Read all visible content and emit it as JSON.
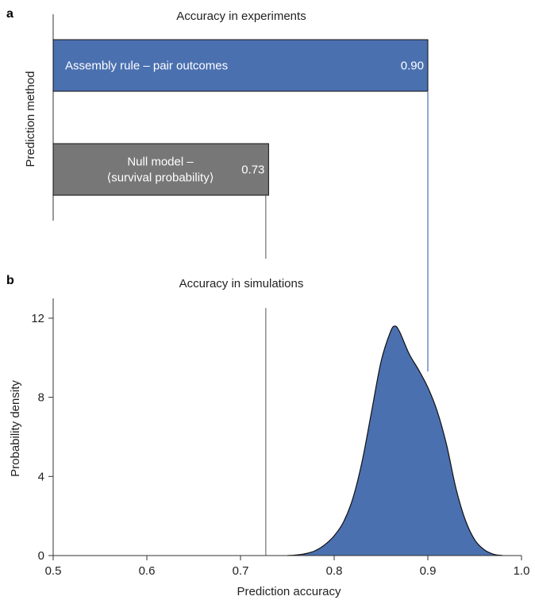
{
  "chart_data": [
    {
      "panel": "a",
      "type": "bar",
      "orientation": "horizontal",
      "title": "Accuracy in experiments",
      "ylabel": "Prediction method",
      "xlim": [
        0.5,
        1.0
      ],
      "categories": [
        {
          "lines": [
            "Assembly rule – pair outcomes"
          ]
        },
        {
          "lines": [
            "Null model –",
            "⟨survival probability⟩"
          ]
        }
      ],
      "values": [
        0.9,
        0.73
      ],
      "value_labels": [
        "0.90",
        "0.73"
      ],
      "colors": [
        "#4a70b0",
        "#777777"
      ]
    },
    {
      "panel": "b",
      "type": "area",
      "title": "Accuracy in simulations",
      "xlabel": "Prediction accuracy",
      "ylabel": "Probability density",
      "xlim": [
        0.5,
        1.0
      ],
      "ylim": [
        0,
        13
      ],
      "xticks": [
        "0.5",
        "0.6",
        "0.7",
        "0.8",
        "0.9",
        "1.0"
      ],
      "yticks": [
        "0",
        "4",
        "8",
        "12"
      ],
      "color": "#4a70b0",
      "density": {
        "x": [
          0.75,
          0.76,
          0.77,
          0.78,
          0.79,
          0.8,
          0.81,
          0.82,
          0.83,
          0.84,
          0.85,
          0.86,
          0.865,
          0.87,
          0.88,
          0.89,
          0.9,
          0.91,
          0.92,
          0.93,
          0.94,
          0.95,
          0.96,
          0.97,
          0.98
        ],
        "y": [
          0.0,
          0.03,
          0.1,
          0.25,
          0.55,
          1.0,
          1.7,
          2.9,
          4.8,
          7.3,
          9.8,
          11.3,
          11.6,
          11.3,
          10.2,
          9.4,
          8.5,
          7.3,
          5.6,
          3.4,
          1.8,
          0.8,
          0.3,
          0.07,
          0.0
        ]
      },
      "reference_lines": [
        {
          "x": 0.9,
          "color": "#4a70b0"
        },
        {
          "x": 0.727,
          "color": "#555555"
        }
      ]
    }
  ],
  "panels": {
    "a": "a",
    "b": "b"
  }
}
